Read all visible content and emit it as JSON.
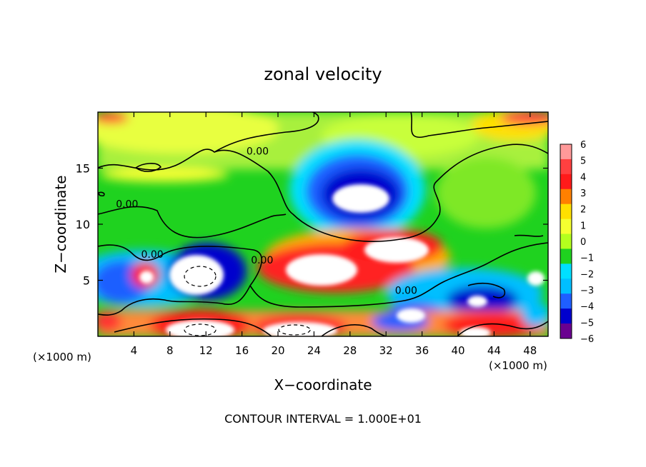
{
  "chart_data": {
    "type": "heatmap",
    "title": "zonal velocity",
    "xlabel": "X−coordinate",
    "ylabel": "Z−coordinate",
    "x_unit_left": "(×1000 m)",
    "x_unit_right": "(×1000 m)",
    "footer": "CONTOUR INTERVAL = 1.000E+01",
    "xlim": [
      0,
      50
    ],
    "ylim": [
      0,
      20
    ],
    "x_ticks": [
      "4",
      "8",
      "12",
      "16",
      "20",
      "24",
      "28",
      "32",
      "36",
      "40",
      "44",
      "48"
    ],
    "y_ticks": [
      "5",
      "10",
      "15"
    ],
    "colorbar": {
      "range": [
        -6,
        6
      ],
      "ticks": [
        "6",
        "5",
        "4",
        "3",
        "2",
        "1",
        "0",
        "−1",
        "−2",
        "−3",
        "−4",
        "−5",
        "−6"
      ],
      "colors": [
        "#ff9999",
        "#ff4040",
        "#ff1a1a",
        "#ff8000",
        "#ffe000",
        "#f5ff30",
        "#b4ff1e",
        "#1fd21f",
        "#00dfff",
        "#00bfff",
        "#1f5fff",
        "#0000cd",
        "#6a0090"
      ]
    },
    "contour_labels": [
      {
        "text": "0.00",
        "x": 16.5,
        "y": 16.2
      },
      {
        "text": "0.00",
        "x": 2.0,
        "y": 11.5
      },
      {
        "text": "0.00",
        "x": 4.8,
        "y": 7.0
      },
      {
        "text": "0.00",
        "x": 17.0,
        "y": 6.5
      },
      {
        "text": "0.00",
        "x": 33.0,
        "y": 3.8
      }
    ]
  }
}
